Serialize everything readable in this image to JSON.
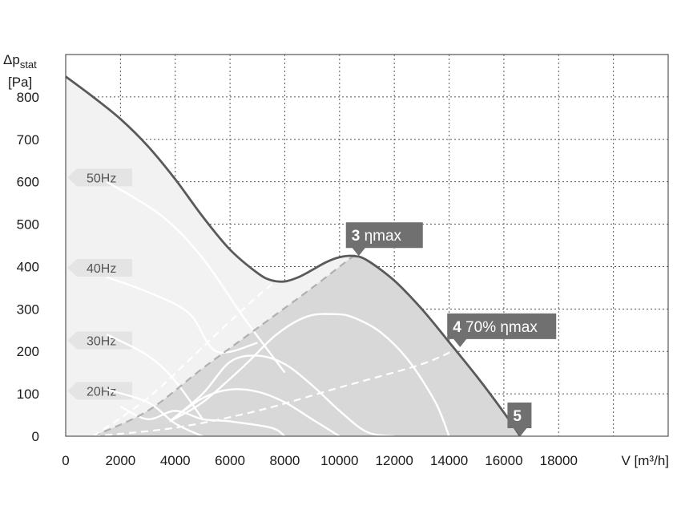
{
  "chart_data": {
    "type": "line",
    "ylabel_symbol": "Δp",
    "ylabel_sub": "stat",
    "yunit": "[Pa]",
    "xlabel": "V [m³/h]",
    "x_ticks": [
      "0",
      "2000",
      "4000",
      "6000",
      "8000",
      "10000",
      "12000",
      "14000",
      "16000",
      "18000"
    ],
    "y_ticks": [
      "0",
      "100",
      "200",
      "300",
      "400",
      "500",
      "600",
      "700",
      "800"
    ],
    "xlim": [
      0,
      22000
    ],
    "ylim": [
      0,
      900
    ],
    "grid": true,
    "colors": {
      "main_curve": "#5a5a5a",
      "operating_region": "#d8d8d8",
      "full_region": "#f2f2f2",
      "tag": "#707070",
      "speed_curves": "#ffffff"
    },
    "series": [
      {
        "name": "",
        "role": "main-curve",
        "x": [
          0,
          1000,
          2000,
          3000,
          4000,
          5000,
          6000,
          7000,
          7500,
          8000,
          8500,
          9000,
          9500,
          10000,
          10500,
          11000,
          12000,
          13000,
          14000,
          15000,
          16000,
          16600
        ],
        "y": [
          848,
          800,
          748,
          684,
          606,
          518,
          440,
          385,
          368,
          365,
          375,
          392,
          410,
          422,
          425,
          415,
          367,
          300,
          222,
          142,
          56,
          0
        ]
      },
      {
        "name": "",
        "role": "speed-curve",
        "x": [
          1500,
          3500,
          5000,
          6500,
          8000
        ],
        "y": [
          600,
          520,
          420,
          280,
          150
        ]
      },
      {
        "name": "",
        "role": "speed-curve",
        "x": [
          1500,
          3000,
          4500,
          5500,
          7000
        ],
        "y": [
          375,
          340,
          290,
          200,
          220
        ]
      },
      {
        "name": "",
        "role": "speed-curve",
        "x": [
          1500,
          3000,
          4000,
          5000
        ],
        "y": [
          240,
          190,
          130,
          40
        ]
      },
      {
        "name": "",
        "role": "speed-curve",
        "x": [
          1500,
          3000,
          4000,
          5000
        ],
        "y": [
          110,
          80,
          30,
          0
        ]
      },
      {
        "name": "",
        "role": "speed-curve",
        "x": [
          3800,
          5000,
          6500,
          7700,
          8800,
          9800,
          10500,
          11500,
          12500,
          13500,
          14000
        ],
        "y": [
          35,
          80,
          165,
          240,
          282,
          288,
          280,
          245,
          180,
          80,
          0
        ]
      },
      {
        "name": "",
        "role": "speed-curve",
        "x": [
          3800,
          5000,
          6000,
          7000,
          8000,
          9000,
          10000,
          11000,
          12000
        ],
        "y": [
          35,
          100,
          175,
          190,
          170,
          120,
          60,
          10,
          0
        ]
      },
      {
        "name": "",
        "role": "speed-curve",
        "x": [
          3800,
          5000,
          6000,
          7000,
          8000,
          9000,
          10000
        ],
        "y": [
          35,
          90,
          110,
          105,
          80,
          40,
          0
        ]
      },
      {
        "name": "",
        "role": "speed-curve",
        "x": [
          2000,
          3000,
          4000,
          5000,
          6000,
          7500,
          8000
        ],
        "y": [
          70,
          40,
          60,
          40,
          35,
          20,
          0
        ]
      },
      {
        "name": "",
        "role": "eta-max-line",
        "x": [
          1000,
          3000,
          5000,
          7000,
          9000,
          10500
        ],
        "y": [
          0,
          60,
          160,
          255,
          350,
          425
        ]
      },
      {
        "name": "",
        "role": "eta70-line",
        "x": [
          1000,
          4000,
          7000,
          10000,
          13000,
          14400
        ],
        "y": [
          0,
          20,
          60,
          115,
          170,
          210
        ]
      },
      {
        "name": "",
        "role": "eta70-left-line",
        "x": [
          1000,
          3000,
          5000,
          7000,
          8000
        ],
        "y": [
          0,
          90,
          210,
          330,
          380
        ]
      }
    ],
    "speed_labels": [
      {
        "label": "50Hz",
        "y": 610
      },
      {
        "label": "40Hz",
        "y": 397
      },
      {
        "label": "30Hz",
        "y": 226
      },
      {
        "label": "20Hz",
        "y": 107
      }
    ],
    "markers": [
      {
        "num": "3",
        "text": "ηmax",
        "x": 10700,
        "y": 425
      },
      {
        "num": "4",
        "text": "70% ηmax",
        "x": 14400,
        "y": 210
      },
      {
        "num": "5",
        "text": "",
        "x": 16600,
        "y": 0
      }
    ]
  }
}
